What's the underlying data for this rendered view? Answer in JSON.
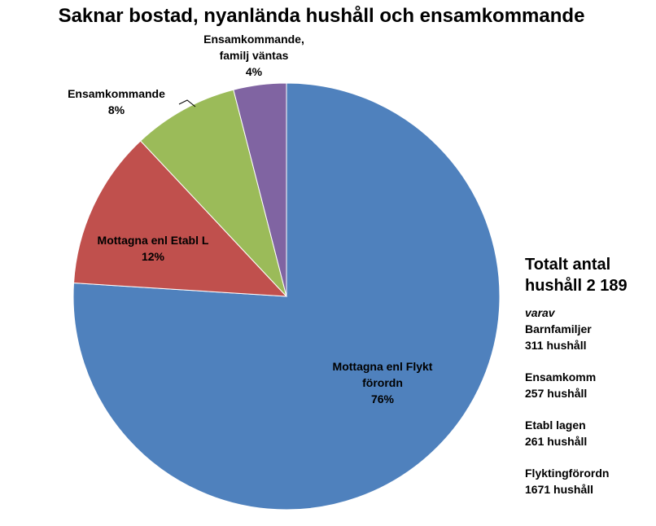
{
  "chart_data": {
    "type": "pie",
    "title": "Saknar bostad, nyanlända hushåll och ensamkommande",
    "slices": [
      {
        "label_lines": [
          "Mottagna enl Flykt",
          "förordn"
        ],
        "percent_label": "76%",
        "value": 76,
        "color": "#4F81BD"
      },
      {
        "label_lines": [
          "Mottagna enl Etabl L"
        ],
        "percent_label": "12%",
        "value": 12,
        "color": "#C0504D"
      },
      {
        "label_lines": [
          "Ensamkommande"
        ],
        "percent_label": "8%",
        "value": 8,
        "color": "#9BBB59"
      },
      {
        "label_lines": [
          "Ensamkommande,",
          "familj väntas"
        ],
        "percent_label": "4%",
        "value": 4,
        "color": "#8064A2"
      }
    ]
  },
  "side_panel": {
    "total_line1": "Totalt antal",
    "total_line2": "hushåll 2 189",
    "varav": "varav",
    "items": [
      {
        "name": "Barnfamiljer",
        "value": "311 hushåll"
      },
      {
        "name": "Ensamkomm",
        "value": "257 hushåll"
      },
      {
        "name": "Etabl lagen",
        "value": "261 hushåll"
      },
      {
        "name": "Flyktingförordn",
        "value": "1671 hushåll"
      }
    ]
  }
}
